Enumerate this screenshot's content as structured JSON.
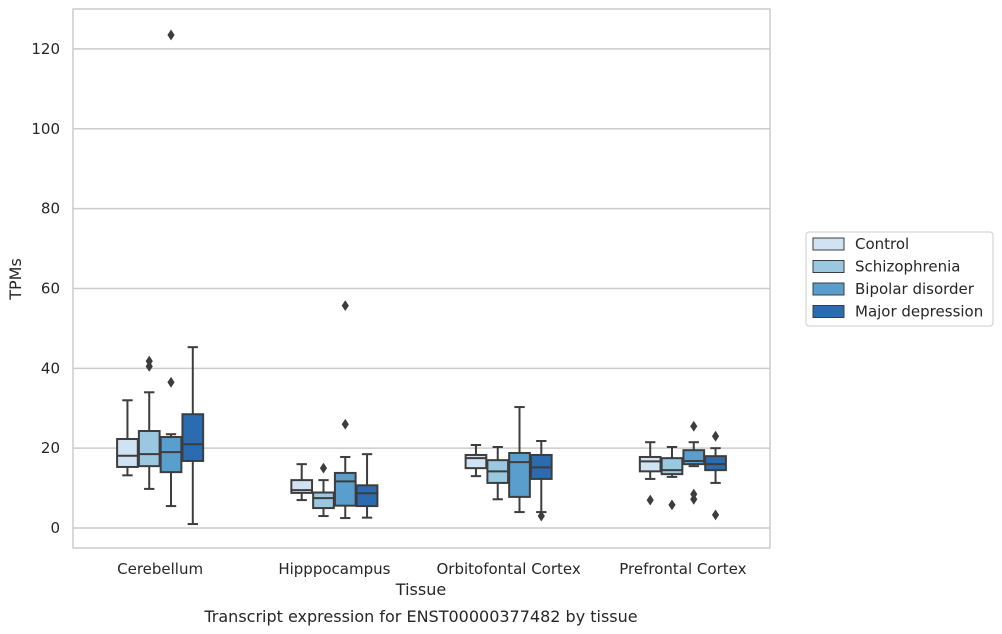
{
  "caption": "Transcript expression for ENST00000377482 by tissue",
  "chart_data": {
    "type": "box",
    "xlabel": "Tissue",
    "ylabel": "TPMs",
    "ylim": [
      -5,
      130
    ],
    "yticks": [
      0,
      20,
      40,
      60,
      80,
      100,
      120
    ],
    "grid": "horizontal",
    "legend_position": "right",
    "categories": [
      "Cerebellum",
      "Hipppocampus",
      "Orbitofontal Cortex",
      "Prefrontal Cortex"
    ],
    "series": [
      {
        "name": "Control",
        "color": "#d1e2f2",
        "boxes": [
          {
            "whisker_low": 13.2,
            "q1": 15.3,
            "median": 18.1,
            "q3": 22.3,
            "whisker_high": 32.0,
            "outliers": []
          },
          {
            "whisker_low": 7.0,
            "q1": 8.8,
            "median": 9.5,
            "q3": 12.0,
            "whisker_high": 16.0,
            "outliers": []
          },
          {
            "whisker_low": 13.0,
            "q1": 15.0,
            "median": 17.5,
            "q3": 18.3,
            "whisker_high": 20.8,
            "outliers": []
          },
          {
            "whisker_low": 12.3,
            "q1": 14.2,
            "median": 16.7,
            "q3": 17.8,
            "whisker_high": 21.5,
            "outliers": [
              7.0
            ]
          }
        ]
      },
      {
        "name": "Schizophrenia",
        "color": "#9ac8e0",
        "boxes": [
          {
            "whisker_low": 9.8,
            "q1": 15.5,
            "median": 18.5,
            "q3": 24.3,
            "whisker_high": 34.0,
            "outliers": [
              40.5,
              41.8
            ]
          },
          {
            "whisker_low": 3.0,
            "q1": 5.0,
            "median": 7.5,
            "q3": 8.9,
            "whisker_high": 12.0,
            "outliers": [
              15.0
            ]
          },
          {
            "whisker_low": 7.2,
            "q1": 11.3,
            "median": 14.2,
            "q3": 17.0,
            "whisker_high": 20.3,
            "outliers": []
          },
          {
            "whisker_low": 12.8,
            "q1": 13.5,
            "median": 14.5,
            "q3": 17.5,
            "whisker_high": 20.3,
            "outliers": [
              5.8
            ]
          }
        ]
      },
      {
        "name": "Bipolar disorder",
        "color": "#5a9ecd",
        "boxes": [
          {
            "whisker_low": 5.5,
            "q1": 14.0,
            "median": 19.0,
            "q3": 22.8,
            "whisker_high": 23.5,
            "outliers": [
              36.5,
              123.5
            ]
          },
          {
            "whisker_low": 2.5,
            "q1": 5.6,
            "median": 11.7,
            "q3": 13.8,
            "whisker_high": 17.8,
            "outliers": [
              26.0,
              55.7
            ]
          },
          {
            "whisker_low": 4.0,
            "q1": 7.8,
            "median": 16.5,
            "q3": 18.8,
            "whisker_high": 30.3,
            "outliers": []
          },
          {
            "whisker_low": 15.5,
            "q1": 16.0,
            "median": 16.8,
            "q3": 19.5,
            "whisker_high": 21.5,
            "outliers": [
              7.2,
              8.5,
              25.5
            ]
          }
        ]
      },
      {
        "name": "Major depression",
        "color": "#2b6cb0",
        "boxes": [
          {
            "whisker_low": 1.0,
            "q1": 16.8,
            "median": 21.0,
            "q3": 28.5,
            "whisker_high": 45.3,
            "outliers": []
          },
          {
            "whisker_low": 2.6,
            "q1": 5.5,
            "median": 8.7,
            "q3": 10.7,
            "whisker_high": 18.5,
            "outliers": []
          },
          {
            "whisker_low": 4.0,
            "q1": 12.3,
            "median": 15.2,
            "q3": 18.3,
            "whisker_high": 21.8,
            "outliers": [
              3.0
            ]
          },
          {
            "whisker_low": 11.3,
            "q1": 14.5,
            "median": 16.0,
            "q3": 18.0,
            "whisker_high": 20.0,
            "outliers": [
              3.3,
              23.0
            ]
          }
        ]
      }
    ]
  }
}
